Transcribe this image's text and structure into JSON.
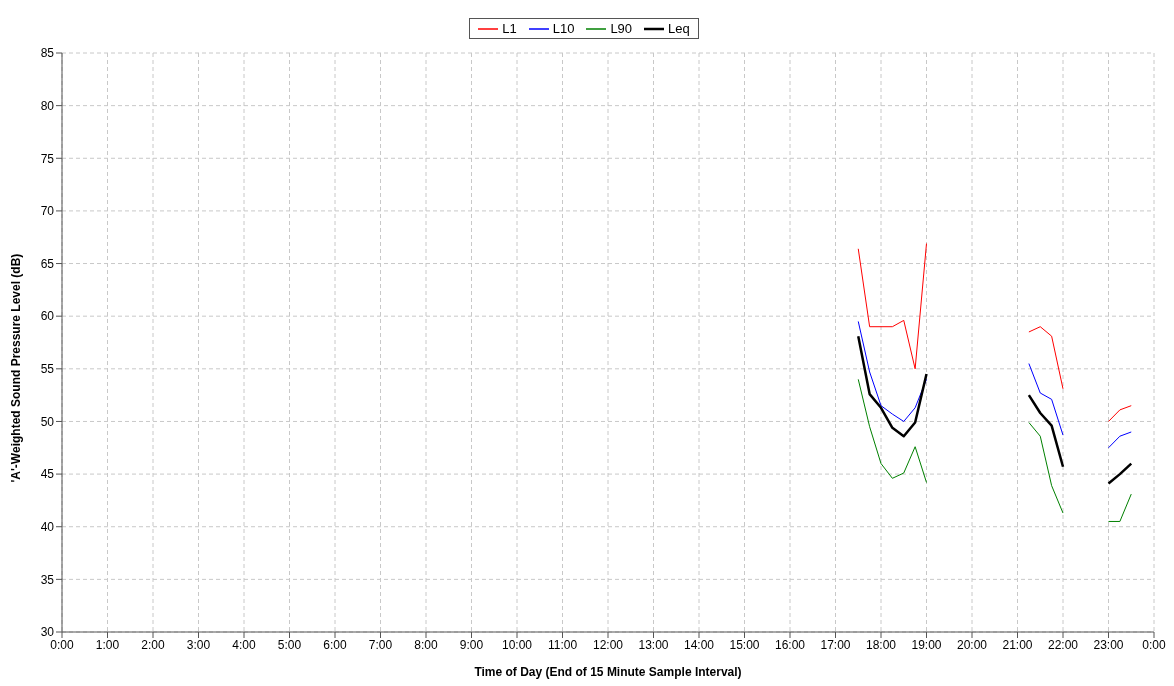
{
  "chart_data": {
    "type": "line",
    "xlabel": "Time of Day (End of 15 Minute Sample Interval)",
    "ylabel": "'A'-Weighted Sound Pressure Level (dB)",
    "x": [
      17.5,
      17.75,
      18.0,
      18.25,
      18.5,
      18.75,
      19.0,
      19.25,
      21.25,
      21.5,
      21.75,
      22.0,
      22.25,
      23.0,
      23.25,
      23.5
    ],
    "series": [
      {
        "name": "L1",
        "color": "#ff0000",
        "values": [
          66.4,
          59.0,
          59.0,
          59.0,
          59.6,
          55.0,
          66.9,
          null,
          58.5,
          59.0,
          58.1,
          53.1,
          null,
          50.0,
          51.1,
          51.5
        ]
      },
      {
        "name": "L10",
        "color": "#0000ff",
        "values": [
          59.5,
          54.7,
          51.5,
          50.7,
          50.0,
          51.3,
          54.0,
          null,
          55.5,
          52.7,
          52.1,
          48.7,
          null,
          47.5,
          48.6,
          49.0
        ]
      },
      {
        "name": "L90",
        "color": "#008000",
        "values": [
          54.0,
          49.5,
          46.0,
          44.6,
          45.1,
          47.6,
          44.2,
          null,
          49.9,
          48.6,
          43.9,
          41.3,
          null,
          40.5,
          40.5,
          43.1
        ]
      },
      {
        "name": "Leq",
        "color": "#000000",
        "values": [
          58.1,
          52.6,
          51.3,
          49.4,
          48.6,
          49.9,
          54.5,
          null,
          52.5,
          50.8,
          49.6,
          45.7,
          null,
          44.1,
          45.0,
          46.0
        ]
      }
    ],
    "xlim": [
      0,
      24
    ],
    "xticks": [
      {
        "value": 0,
        "label": "0:00"
      },
      {
        "value": 1,
        "label": "1:00"
      },
      {
        "value": 2,
        "label": "2:00"
      },
      {
        "value": 3,
        "label": "3:00"
      },
      {
        "value": 4,
        "label": "4:00"
      },
      {
        "value": 5,
        "label": "5:00"
      },
      {
        "value": 6,
        "label": "6:00"
      },
      {
        "value": 7,
        "label": "7:00"
      },
      {
        "value": 8,
        "label": "8:00"
      },
      {
        "value": 9,
        "label": "9:00"
      },
      {
        "value": 10,
        "label": "10:00"
      },
      {
        "value": 11,
        "label": "11:00"
      },
      {
        "value": 12,
        "label": "12:00"
      },
      {
        "value": 13,
        "label": "13:00"
      },
      {
        "value": 14,
        "label": "14:00"
      },
      {
        "value": 15,
        "label": "15:00"
      },
      {
        "value": 16,
        "label": "16:00"
      },
      {
        "value": 17,
        "label": "17:00"
      },
      {
        "value": 18,
        "label": "18:00"
      },
      {
        "value": 19,
        "label": "19:00"
      },
      {
        "value": 20,
        "label": "20:00"
      },
      {
        "value": 21,
        "label": "21:00"
      },
      {
        "value": 22,
        "label": "22:00"
      },
      {
        "value": 23,
        "label": "23:00"
      },
      {
        "value": 24,
        "label": "0:00"
      }
    ],
    "ylim": [
      30,
      85
    ],
    "yticks": [
      30,
      35,
      40,
      45,
      50,
      55,
      60,
      65,
      70,
      75,
      80,
      85
    ],
    "grid": true,
    "legend": "top",
    "marker": "none",
    "line_style": "solid"
  }
}
